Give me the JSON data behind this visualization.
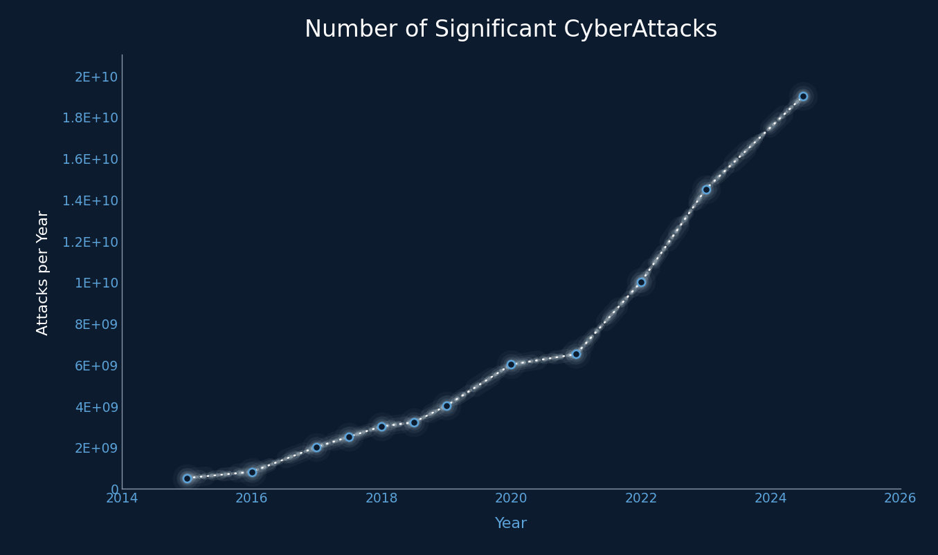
{
  "title": "Number of Significant CyberAttacks",
  "xlabel": "Year",
  "ylabel": "Attacks per Year",
  "background_color": "#0d1b2e",
  "axes_bg_color": "#0d1b2e",
  "title_color": "#ffffff",
  "ylabel_color": "#ffffff",
  "xlabel_color": "#5ba3d9",
  "tick_color": "#5ba3d9",
  "spine_color": "#8899aa",
  "years": [
    2015,
    2016,
    2017,
    2017.5,
    2018,
    2018.5,
    2019,
    2020,
    2021,
    2022,
    2023,
    2024.5
  ],
  "values": [
    500000000.0,
    800000000.0,
    2000000000.0,
    2500000000.0,
    3000000000.0,
    3200000000.0,
    4000000000.0,
    6000000000.0,
    6500000000.0,
    10000000000.0,
    14500000000.0,
    19000000000.0
  ],
  "xlim": [
    2014,
    2026
  ],
  "ylim": [
    0,
    21000000000.0
  ],
  "xticks": [
    2014,
    2016,
    2018,
    2020,
    2022,
    2024,
    2026
  ],
  "yticks": [
    0,
    2000000000.0,
    4000000000.0,
    6000000000.0,
    8000000000.0,
    10000000000.0,
    12000000000.0,
    14000000000.0,
    16000000000.0,
    18000000000.0,
    20000000000.0
  ],
  "ytick_labels": [
    "0",
    "2E+09",
    "4E+09",
    "6E+09",
    "8E+09",
    "1E+10",
    "1.2E+10",
    "1.4E+10",
    "1.6E+10",
    "1.8E+10",
    "2E+10"
  ],
  "line_color": "#ffffff",
  "marker_face_color": "#0d1b2e",
  "marker_edge_color": "#5ba3d9",
  "glow_color_line": "#d0e8f0",
  "glow_color_marker": "#c0d8e8"
}
